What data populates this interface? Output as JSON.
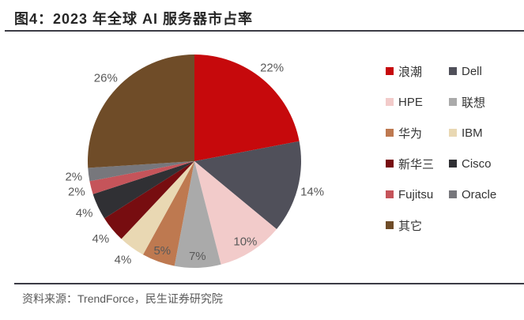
{
  "header": {
    "figure_title": "图4：2023 年全球 AI 服务器市占率"
  },
  "chart_data": {
    "type": "pie",
    "title": "2023 年全球 AI 服务器市占率",
    "unit": "percent",
    "start_angle": "12-oclock",
    "direction": "clockwise",
    "legend_position": "right",
    "series": [
      {
        "name": "浪潮",
        "value": 22,
        "label": "22%",
        "color": "#C6090C",
        "label_inside": false
      },
      {
        "name": "Dell",
        "value": 14,
        "label": "14%",
        "color": "#50505A",
        "label_inside": false
      },
      {
        "name": "HPE",
        "value": 10,
        "label": "10%",
        "color": "#F2CBCA",
        "label_inside": true
      },
      {
        "name": "联想",
        "value": 7,
        "label": "7%",
        "color": "#AAAAAA",
        "label_inside": true
      },
      {
        "name": "华为",
        "value": 5,
        "label": "5%",
        "color": "#BE7950",
        "label_inside": true
      },
      {
        "name": "IBM",
        "value": 4,
        "label": "4%",
        "color": "#E9D8B3",
        "label_inside": false
      },
      {
        "name": "新华三",
        "value": 4,
        "label": "4%",
        "color": "#770D10",
        "label_inside": false
      },
      {
        "name": "Cisco",
        "value": 4,
        "label": "4%",
        "color": "#303034",
        "label_inside": false
      },
      {
        "name": "Fujitsu",
        "value": 2,
        "label": "2%",
        "color": "#C5545A",
        "label_inside": false
      },
      {
        "name": "Oracle",
        "value": 2,
        "label": "2%",
        "color": "#77777C",
        "label_inside": false
      },
      {
        "name": "其它",
        "value": 26,
        "label": "26%",
        "color": "#6F4C28",
        "label_inside": false
      }
    ]
  },
  "footer": {
    "source": "资料来源：TrendForce，民生证券研究院"
  }
}
